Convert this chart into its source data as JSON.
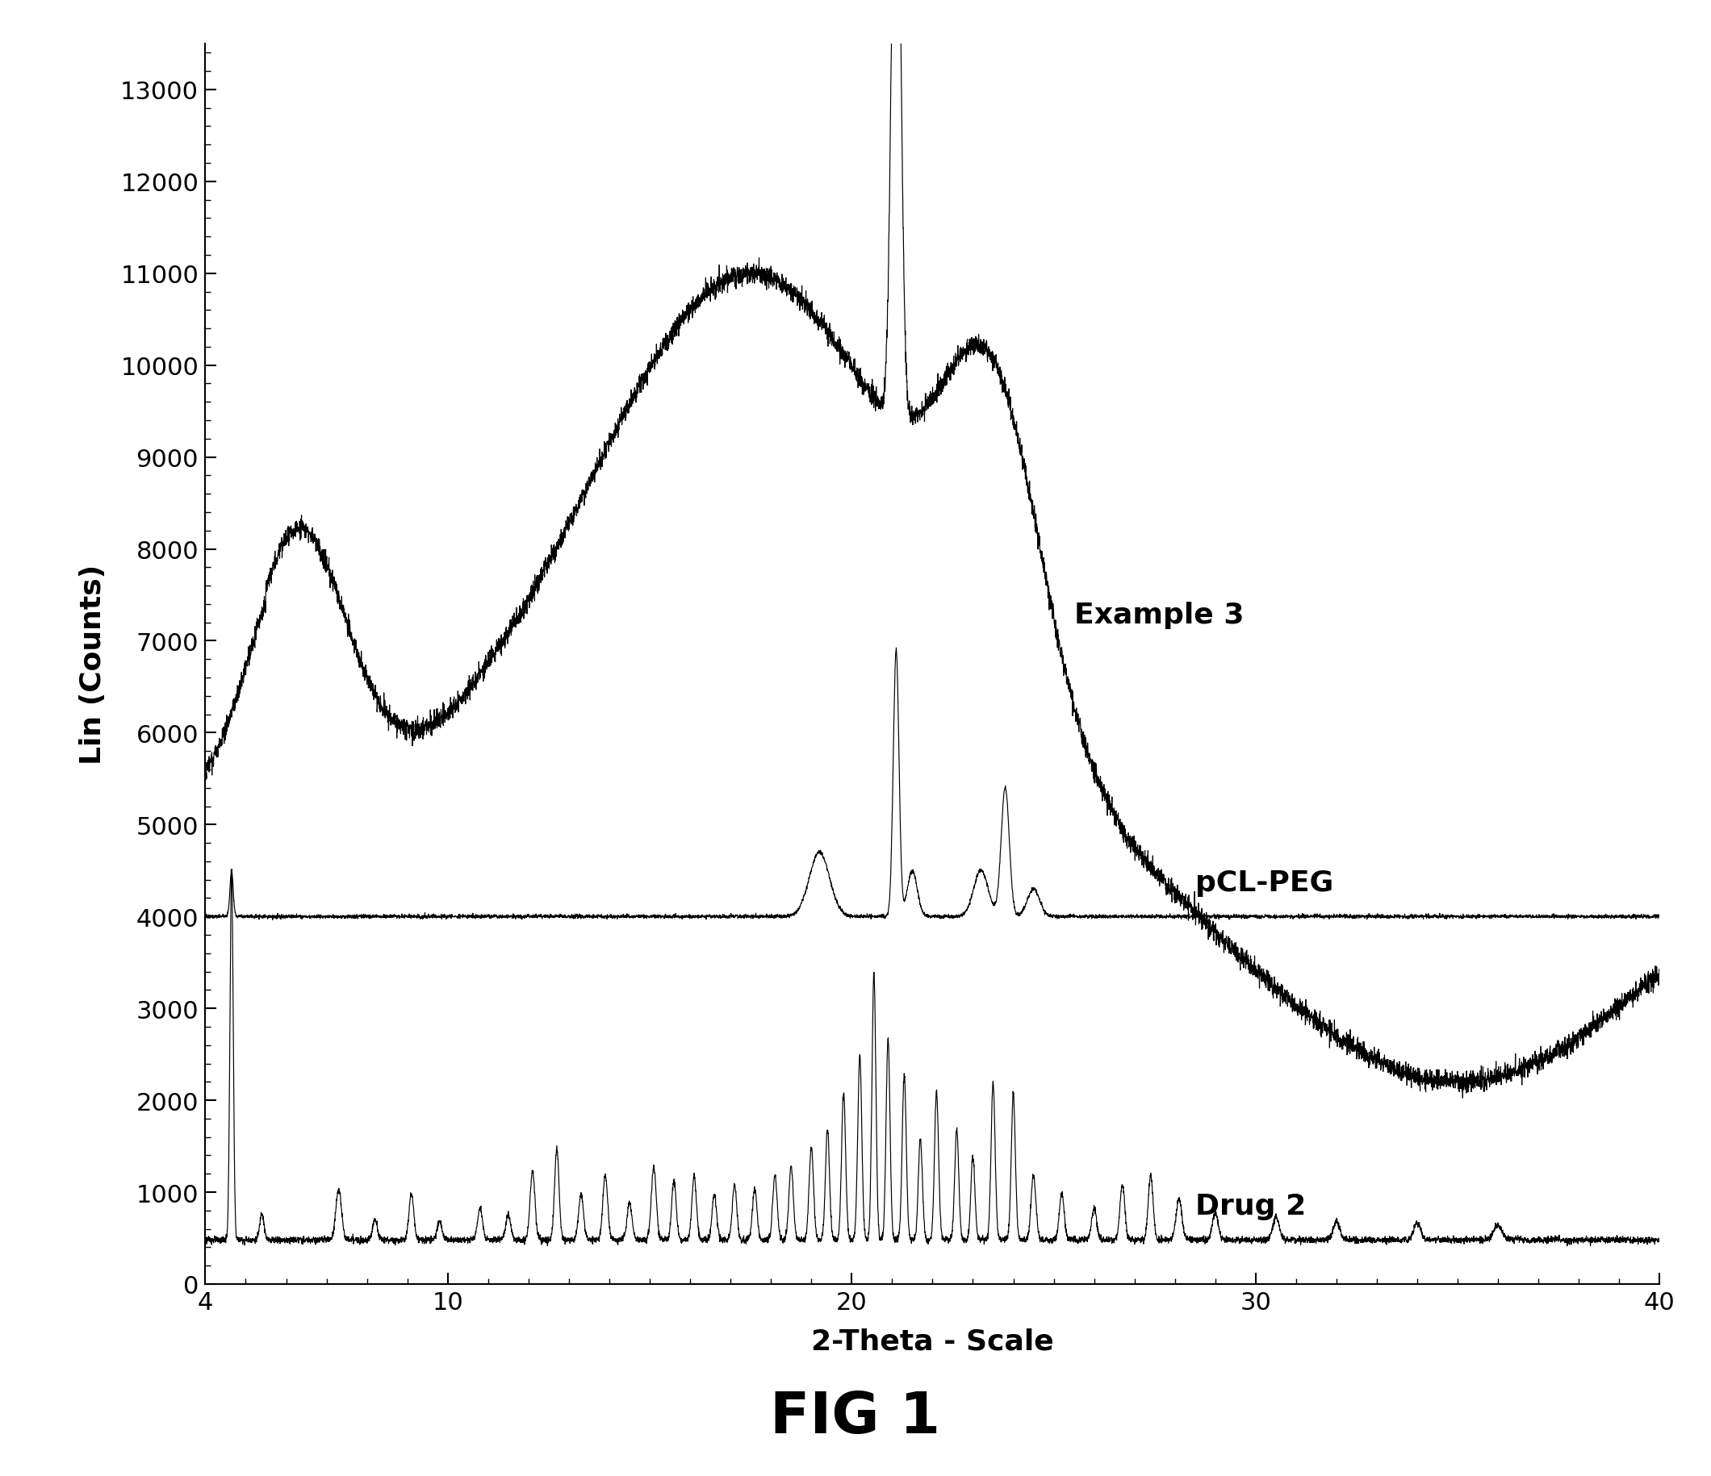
{
  "xlim": [
    4,
    40
  ],
  "ylim": [
    0,
    13500
  ],
  "xlabel": "2-Theta - Scale",
  "ylabel": "Lin (Counts)",
  "title": "FIG 1",
  "yticks": [
    0,
    1000,
    2000,
    3000,
    4000,
    5000,
    6000,
    7000,
    8000,
    9000,
    10000,
    11000,
    12000,
    13000
  ],
  "xticks": [
    4,
    10,
    20,
    30,
    40
  ],
  "label_example3": "Example 3",
  "label_pclpeg": "pCL-PEG",
  "label_drug2": "Drug 2",
  "bg_color": "#ffffff",
  "line_color": "#000000"
}
